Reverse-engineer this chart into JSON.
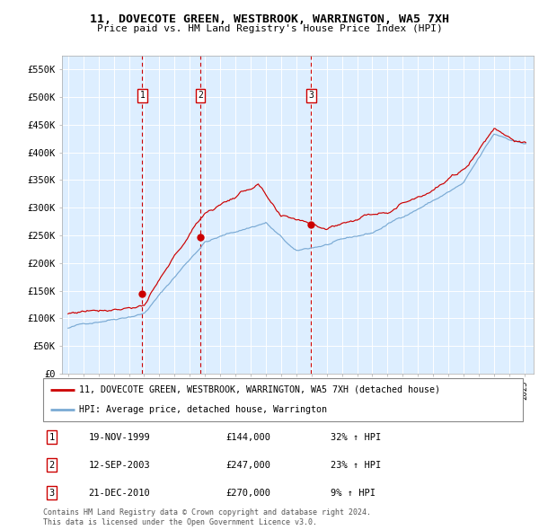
{
  "title": "11, DOVECOTE GREEN, WESTBROOK, WARRINGTON, WA5 7XH",
  "subtitle": "Price paid vs. HM Land Registry's House Price Index (HPI)",
  "ylim": [
    0,
    575000
  ],
  "yticks": [
    0,
    50000,
    100000,
    150000,
    200000,
    250000,
    300000,
    350000,
    400000,
    450000,
    500000,
    550000
  ],
  "ytick_labels": [
    "£0",
    "£50K",
    "£100K",
    "£150K",
    "£200K",
    "£250K",
    "£300K",
    "£350K",
    "£400K",
    "£450K",
    "£500K",
    "£550K"
  ],
  "x_start_year": 1995,
  "x_end_year": 2025,
  "sale1_date": 1999.88,
  "sale1_price": 144000,
  "sale1_label": "1",
  "sale1_text": "19-NOV-1999",
  "sale1_amount": "£144,000",
  "sale1_pct": "32% ↑ HPI",
  "sale2_date": 2003.7,
  "sale2_price": 247000,
  "sale2_label": "2",
  "sale2_text": "12-SEP-2003",
  "sale2_amount": "£247,000",
  "sale2_pct": "23% ↑ HPI",
  "sale3_date": 2010.97,
  "sale3_price": 270000,
  "sale3_label": "3",
  "sale3_text": "21-DEC-2010",
  "sale3_amount": "£270,000",
  "sale3_pct": "9% ↑ HPI",
  "hpi_color": "#7aaad4",
  "price_color": "#cc0000",
  "bg_color": "#ddeeff",
  "grid_color": "#ffffff",
  "vline_color": "#cc0000",
  "legend_label_price": "11, DOVECOTE GREEN, WESTBROOK, WARRINGTON, WA5 7XH (detached house)",
  "legend_label_hpi": "HPI: Average price, detached house, Warrington",
  "footer": "Contains HM Land Registry data © Crown copyright and database right 2024.\nThis data is licensed under the Open Government Licence v3.0."
}
